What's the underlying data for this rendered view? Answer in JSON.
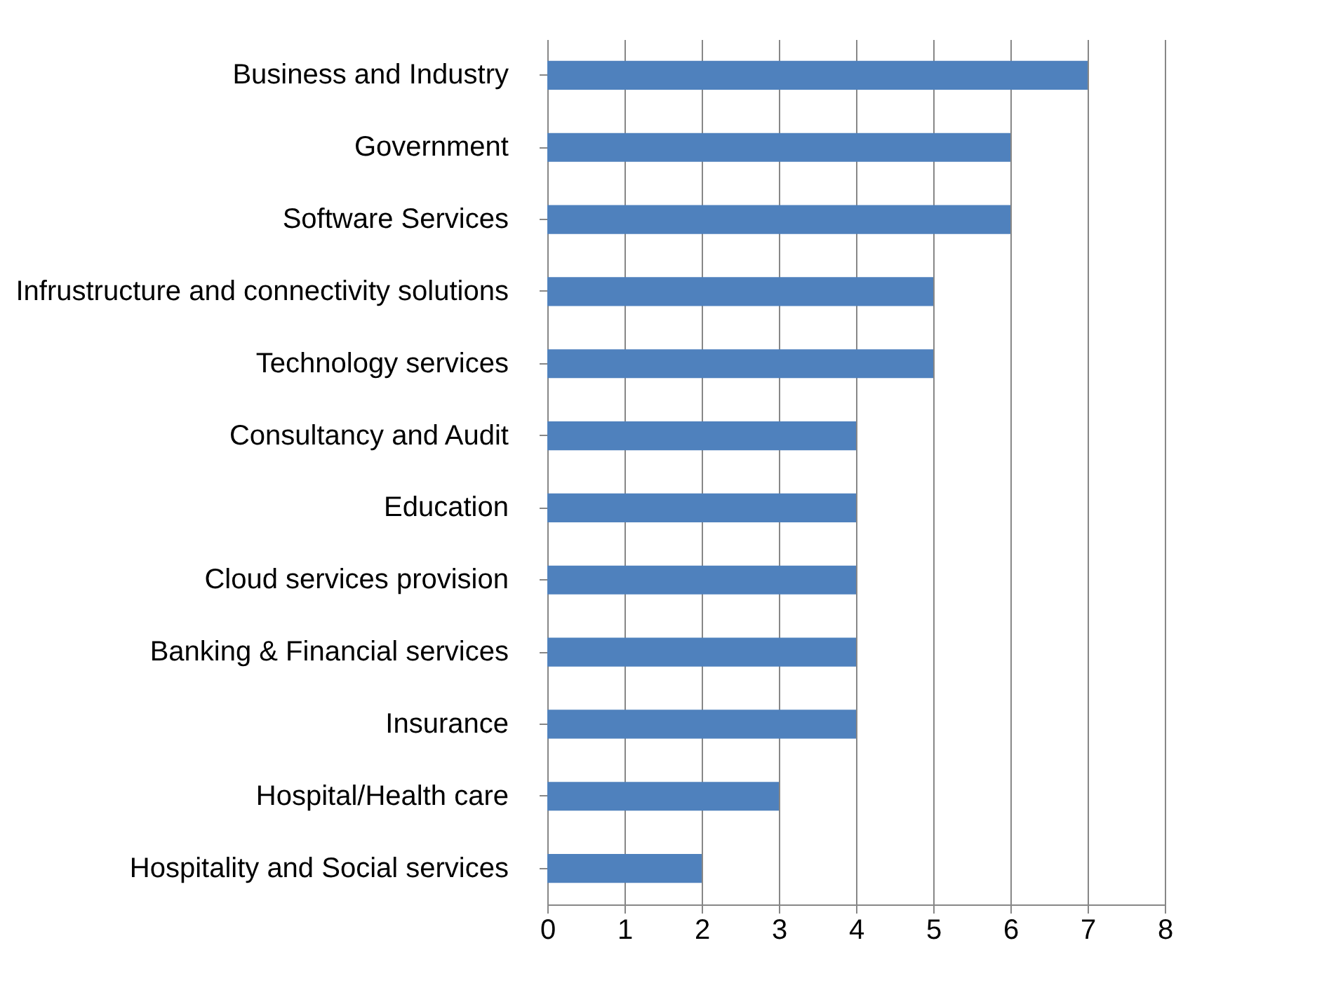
{
  "chart_data": {
    "type": "bar",
    "orientation": "horizontal",
    "categories": [
      "Business and Industry",
      "Government",
      "Software Services",
      "Infrustructure and connectivity solutions",
      "Technology services",
      "Consultancy and Audit",
      "Education",
      "Cloud services provision",
      "Banking & Financial services",
      "Insurance",
      "Hospital/Health care",
      "Hospitality and Social services"
    ],
    "values": [
      7,
      6,
      6,
      5,
      5,
      4,
      4,
      4,
      4,
      4,
      3,
      2
    ],
    "color": "#4f81bd",
    "xlim": [
      0,
      8
    ],
    "xticks": [
      0,
      1,
      2,
      3,
      4,
      5,
      6,
      7,
      8
    ],
    "grid": "x"
  }
}
